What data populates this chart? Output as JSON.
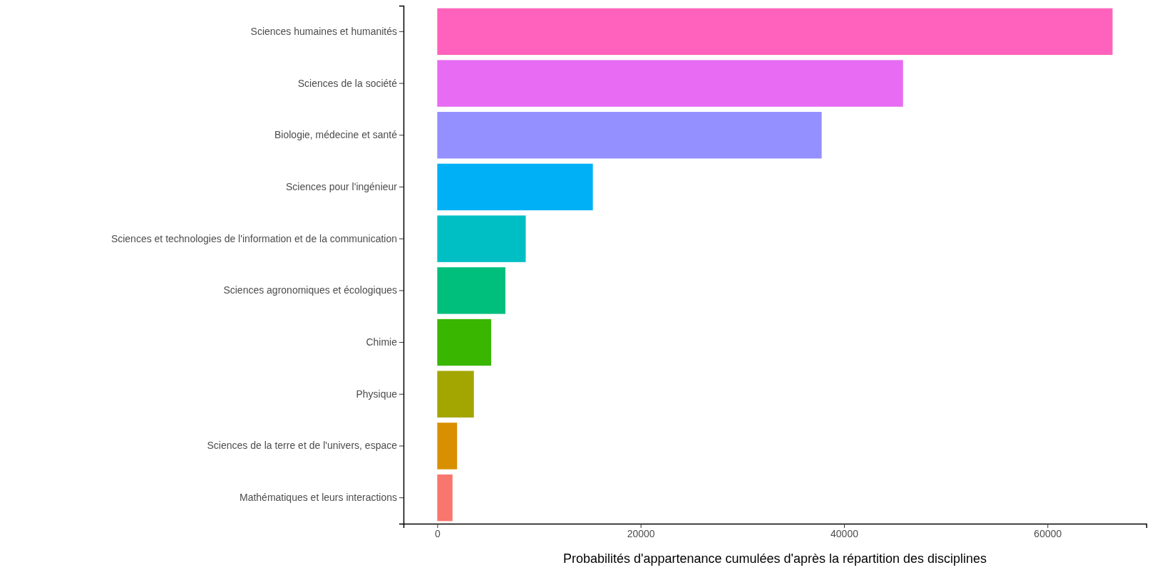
{
  "chart_data": {
    "type": "bar",
    "orientation": "horizontal",
    "xlabel": "Probabilités d'appartenance cumulées d'après la répartition des disciplines",
    "categories": [
      "Sciences humaines et humanités",
      "Sciences de la société",
      "Biologie, médecine et santé",
      "Sciences pour l'ingénieur",
      "Sciences et technologies de l'information et de la communication",
      "Sciences agronomiques et écologiques",
      "Chimie",
      "Physique",
      "Sciences de la terre et de l'univers, espace",
      "Mathématiques et leurs interactions"
    ],
    "values": [
      66400,
      45800,
      37800,
      15300,
      8700,
      6700,
      5300,
      3600,
      1950,
      1500
    ],
    "colors": [
      "#FF62BC",
      "#E76BF3",
      "#9590FF",
      "#00B0F6",
      "#00BFC4",
      "#00BF7D",
      "#39B600",
      "#A3A500",
      "#D89000",
      "#F8766D"
    ],
    "xlim": [
      -3320,
      69720
    ],
    "xticks": [
      0,
      20000,
      40000,
      60000
    ],
    "grid": false
  }
}
